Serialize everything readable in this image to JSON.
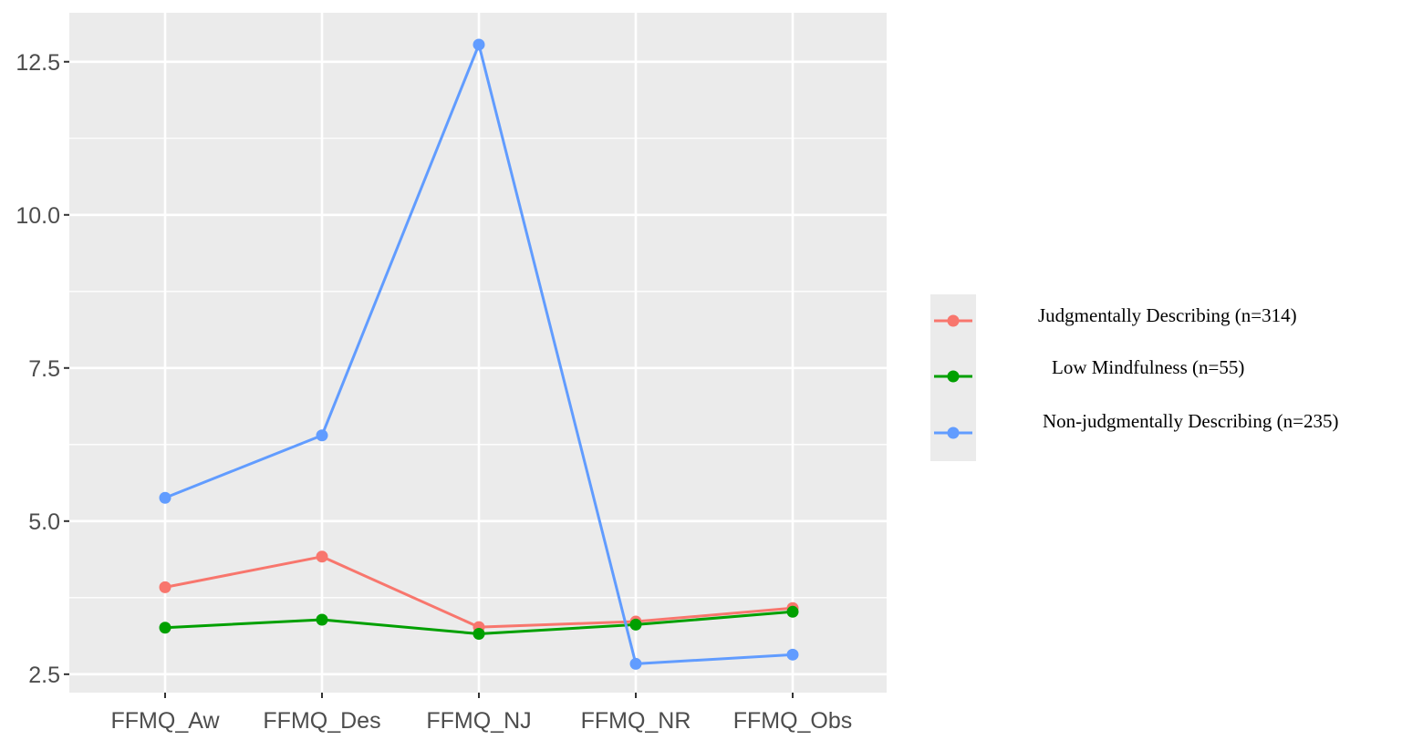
{
  "chart_data": {
    "type": "line",
    "title": "",
    "xlabel": "",
    "ylabel": "",
    "categories": [
      "FFMQ_Aw",
      "FFMQ_Des",
      "FFMQ_NJ",
      "FFMQ_NR",
      "FFMQ_Obs"
    ],
    "ylim": [
      2.2,
      13.3
    ],
    "yticks": [
      2.5,
      5.0,
      7.5,
      10.0,
      12.5
    ],
    "ytick_labels": [
      "2.5",
      "5.0",
      "7.5",
      "10.0",
      "12.5"
    ],
    "grid": true,
    "legend_position": "right",
    "series": [
      {
        "name": "Judgmentally Describing (n=314)",
        "color": "#F8766D",
        "values": [
          3.92,
          4.42,
          3.27,
          3.36,
          3.58
        ]
      },
      {
        "name": "Low Mindfulness (n=55)",
        "color": "#00A000",
        "values": [
          3.26,
          3.39,
          3.16,
          3.31,
          3.52
        ]
      },
      {
        "name": "Non-judgmentally Describing (n=235)",
        "color": "#619CFF",
        "values": [
          5.38,
          6.4,
          12.78,
          2.67,
          2.82
        ]
      }
    ]
  }
}
